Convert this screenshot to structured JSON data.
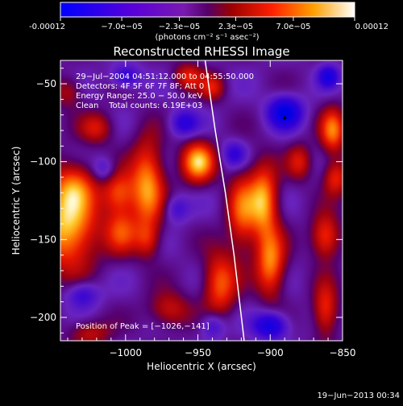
{
  "chart_data": {
    "type": "heatmap",
    "title": "Reconstructed RHESSI Image",
    "xlabel": "Heliocentric X (arcsec)",
    "ylabel": "Heliocentric Y (arcsec)",
    "xlim": [
      -1045,
      -850
    ],
    "ylim": [
      -215,
      -35
    ],
    "x_ticks": [
      -1000,
      -950,
      -900,
      -850
    ],
    "x_tick_labels": [
      "−1000",
      "−950",
      "−900",
      "−850"
    ],
    "y_ticks": [
      -50,
      -100,
      -150,
      -200
    ],
    "y_tick_labels": [
      "−50",
      "−100",
      "−150",
      "−200"
    ],
    "colorbar": {
      "min": -0.00012,
      "max": 0.00012,
      "ticks": [
        -0.00012,
        -7e-05,
        -2.3e-05,
        2.3e-05,
        7e-05,
        0.00012
      ],
      "tick_labels": [
        "-0.00012",
        "−7.0e−05",
        "−2.3e−05",
        "2.3e−05",
        "7.0e−05",
        "0.00012"
      ],
      "units": "(photons cm⁻² s⁻¹ asec⁻²)"
    },
    "annotations": [
      "29−Jul−2004 04:51:12.000 to 04:55:50.000",
      "Detectors: 4F 5F 6F 7F 8F; Att 0",
      "Energy Range: 25.0 − 50.0 keV",
      "Clean    Total counts: 6.19E+03"
    ],
    "peak_label": "Position of Peak = [−1026,−141]",
    "peak": [
      -1026,
      -141
    ],
    "blobs": [
      {
        "x": -1040,
        "y": -140,
        "v": 1.0,
        "sx": 14,
        "sy": 20
      },
      {
        "x": -1035,
        "y": -115,
        "v": 0.45,
        "sx": 10,
        "sy": 10
      },
      {
        "x": -1005,
        "y": -120,
        "v": 0.65,
        "sx": 8,
        "sy": 10
      },
      {
        "x": -1003,
        "y": -145,
        "v": 0.55,
        "sx": 8,
        "sy": 10
      },
      {
        "x": -1020,
        "y": -78,
        "v": 0.45,
        "sx": 8,
        "sy": 7
      },
      {
        "x": -985,
        "y": -115,
        "v": 0.85,
        "sx": 8,
        "sy": 20
      },
      {
        "x": -985,
        "y": -150,
        "v": 0.4,
        "sx": 6,
        "sy": 8
      },
      {
        "x": -950,
        "y": -100,
        "v": 0.95,
        "sx": 8,
        "sy": 9
      },
      {
        "x": -957,
        "y": -45,
        "v": 0.5,
        "sx": 7,
        "sy": 6
      },
      {
        "x": -940,
        "y": -52,
        "v": 0.45,
        "sx": 6,
        "sy": 6
      },
      {
        "x": -920,
        "y": -132,
        "v": 0.65,
        "sx": 7,
        "sy": 18
      },
      {
        "x": -935,
        "y": -178,
        "v": 0.7,
        "sx": 8,
        "sy": 14
      },
      {
        "x": -905,
        "y": -125,
        "v": 0.9,
        "sx": 7,
        "sy": 16
      },
      {
        "x": -900,
        "y": -165,
        "v": 0.8,
        "sx": 7,
        "sy": 15
      },
      {
        "x": -880,
        "y": -100,
        "v": 0.45,
        "sx": 6,
        "sy": 8
      },
      {
        "x": -857,
        "y": -80,
        "v": 0.75,
        "sx": 6,
        "sy": 10
      },
      {
        "x": -855,
        "y": -110,
        "v": 0.55,
        "sx": 6,
        "sy": 8
      },
      {
        "x": -862,
        "y": -148,
        "v": 0.65,
        "sx": 7,
        "sy": 10
      },
      {
        "x": -862,
        "y": -195,
        "v": 0.6,
        "sx": 6,
        "sy": 12
      },
      {
        "x": -970,
        "y": -195,
        "v": 0.45,
        "sx": 10,
        "sy": 8
      },
      {
        "x": -1025,
        "y": -210,
        "v": 0.4,
        "sx": 10,
        "sy": 6
      },
      {
        "x": -1040,
        "y": -55,
        "v": 0.35,
        "sx": 7,
        "sy": 7
      },
      {
        "x": -890,
        "y": -68,
        "v": -0.85,
        "sx": 8,
        "sy": 7
      },
      {
        "x": -960,
        "y": -75,
        "v": -0.5,
        "sx": 7,
        "sy": 6
      },
      {
        "x": -1000,
        "y": -45,
        "v": -0.5,
        "sx": 7,
        "sy": 5
      },
      {
        "x": -900,
        "y": -205,
        "v": -0.75,
        "sx": 8,
        "sy": 6
      },
      {
        "x": -860,
        "y": -45,
        "v": -0.6,
        "sx": 5,
        "sy": 5
      },
      {
        "x": -1030,
        "y": -185,
        "v": -0.45,
        "sx": 8,
        "sy": 6
      },
      {
        "x": -925,
        "y": -95,
        "v": -0.45,
        "sx": 6,
        "sy": 6
      },
      {
        "x": -1015,
        "y": -105,
        "v": -0.35,
        "sx": 6,
        "sy": 6
      },
      {
        "x": -965,
        "y": -130,
        "v": -0.35,
        "sx": 6,
        "sy": 6
      },
      {
        "x": -940,
        "y": -205,
        "v": -0.4,
        "sx": 6,
        "sy": 6
      }
    ],
    "limb": [
      [
        -945,
        -35
      ],
      [
        -938,
        -80
      ],
      [
        -931,
        -120
      ],
      [
        -925,
        -160
      ],
      [
        -918,
        -215
      ]
    ],
    "colors": {
      "background": "#000000",
      "text": "#ffffff",
      "limb": "#ffffff"
    }
  },
  "footer": {
    "timestamp": "19−Jun−2013 00:34"
  }
}
